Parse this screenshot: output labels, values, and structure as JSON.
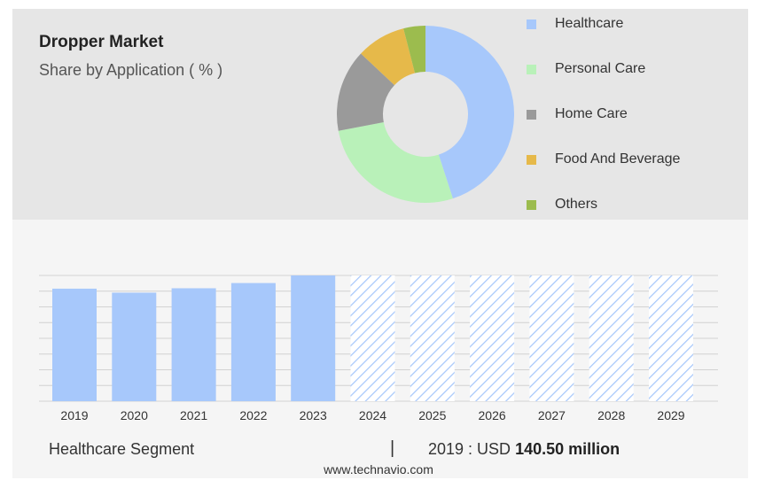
{
  "header": {
    "title": "Dropper Market",
    "subtitle": "Share by Application ( % )"
  },
  "chart_data": [
    {
      "type": "pie",
      "style": "donut",
      "title": "Share by Application ( % )",
      "categories": [
        "Healthcare",
        "Personal Care",
        "Home Care",
        "Food And Beverage",
        "Others"
      ],
      "values": [
        45,
        27,
        15,
        9,
        4
      ],
      "colors": [
        "#a7c8fb",
        "#b9f1b9",
        "#9a9a9a",
        "#e6b94a",
        "#9cbc4e"
      ],
      "legend": "right"
    },
    {
      "type": "bar",
      "series_name": "Healthcare Segment",
      "categories": [
        "2019",
        "2020",
        "2021",
        "2022",
        "2023",
        "2024",
        "2025",
        "2026",
        "2027",
        "2028",
        "2029"
      ],
      "values": [
        140.5,
        135.5,
        141.0,
        147.5,
        157.0,
        null,
        null,
        null,
        null,
        null,
        null
      ],
      "forecast_years": [
        "2024",
        "2025",
        "2026",
        "2027",
        "2028",
        "2029"
      ],
      "color": "#a7c8fb",
      "grid": true
    }
  ],
  "footer": {
    "segment": "Healthcare Segment",
    "separator": "|",
    "value_prefix": "2019 : USD",
    "value_bold": "140.50 million"
  },
  "source": "www.technavio.com"
}
